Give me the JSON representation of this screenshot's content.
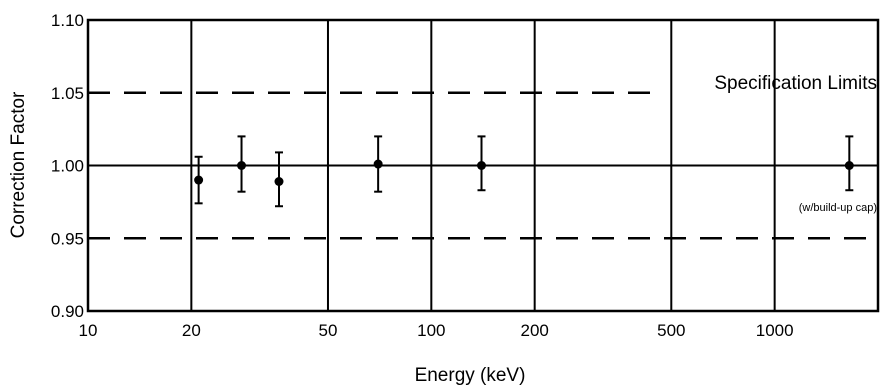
{
  "chart_data": {
    "type": "scatter",
    "title": "",
    "xlabel": "Energy (keV)",
    "ylabel": "Correction Factor",
    "x_scale": "log",
    "xlim": [
      10,
      2000
    ],
    "ylim": [
      0.9,
      1.1
    ],
    "x_ticks": [
      10,
      20,
      50,
      100,
      200,
      500,
      1000
    ],
    "x_tick_labels": [
      "10",
      "20",
      "50",
      "100",
      "200",
      "500",
      "1000"
    ],
    "y_ticks": [
      0.9,
      0.95,
      1.0,
      1.05,
      1.1
    ],
    "y_tick_labels": [
      "0.90",
      "0.95",
      "1.00",
      "1.05",
      "1.10"
    ],
    "grid": true,
    "reference_line": 1.0,
    "spec_limits": [
      0.95,
      1.05
    ],
    "annotations": {
      "spec_limits_label": "Specification Limits",
      "buildup_cap_label": "(w/build-up cap)"
    },
    "points": [
      {
        "x": 21,
        "y": 0.99,
        "y_low": 0.974,
        "y_high": 1.006
      },
      {
        "x": 28,
        "y": 1.0,
        "y_low": 0.982,
        "y_high": 1.02
      },
      {
        "x": 36,
        "y": 0.989,
        "y_low": 0.972,
        "y_high": 1.009
      },
      {
        "x": 70,
        "y": 1.001,
        "y_low": 0.982,
        "y_high": 1.02
      },
      {
        "x": 140,
        "y": 1.0,
        "y_low": 0.983,
        "y_high": 1.02
      },
      {
        "x": 1650,
        "y": 1.0,
        "y_low": 0.983,
        "y_high": 1.02
      }
    ]
  }
}
